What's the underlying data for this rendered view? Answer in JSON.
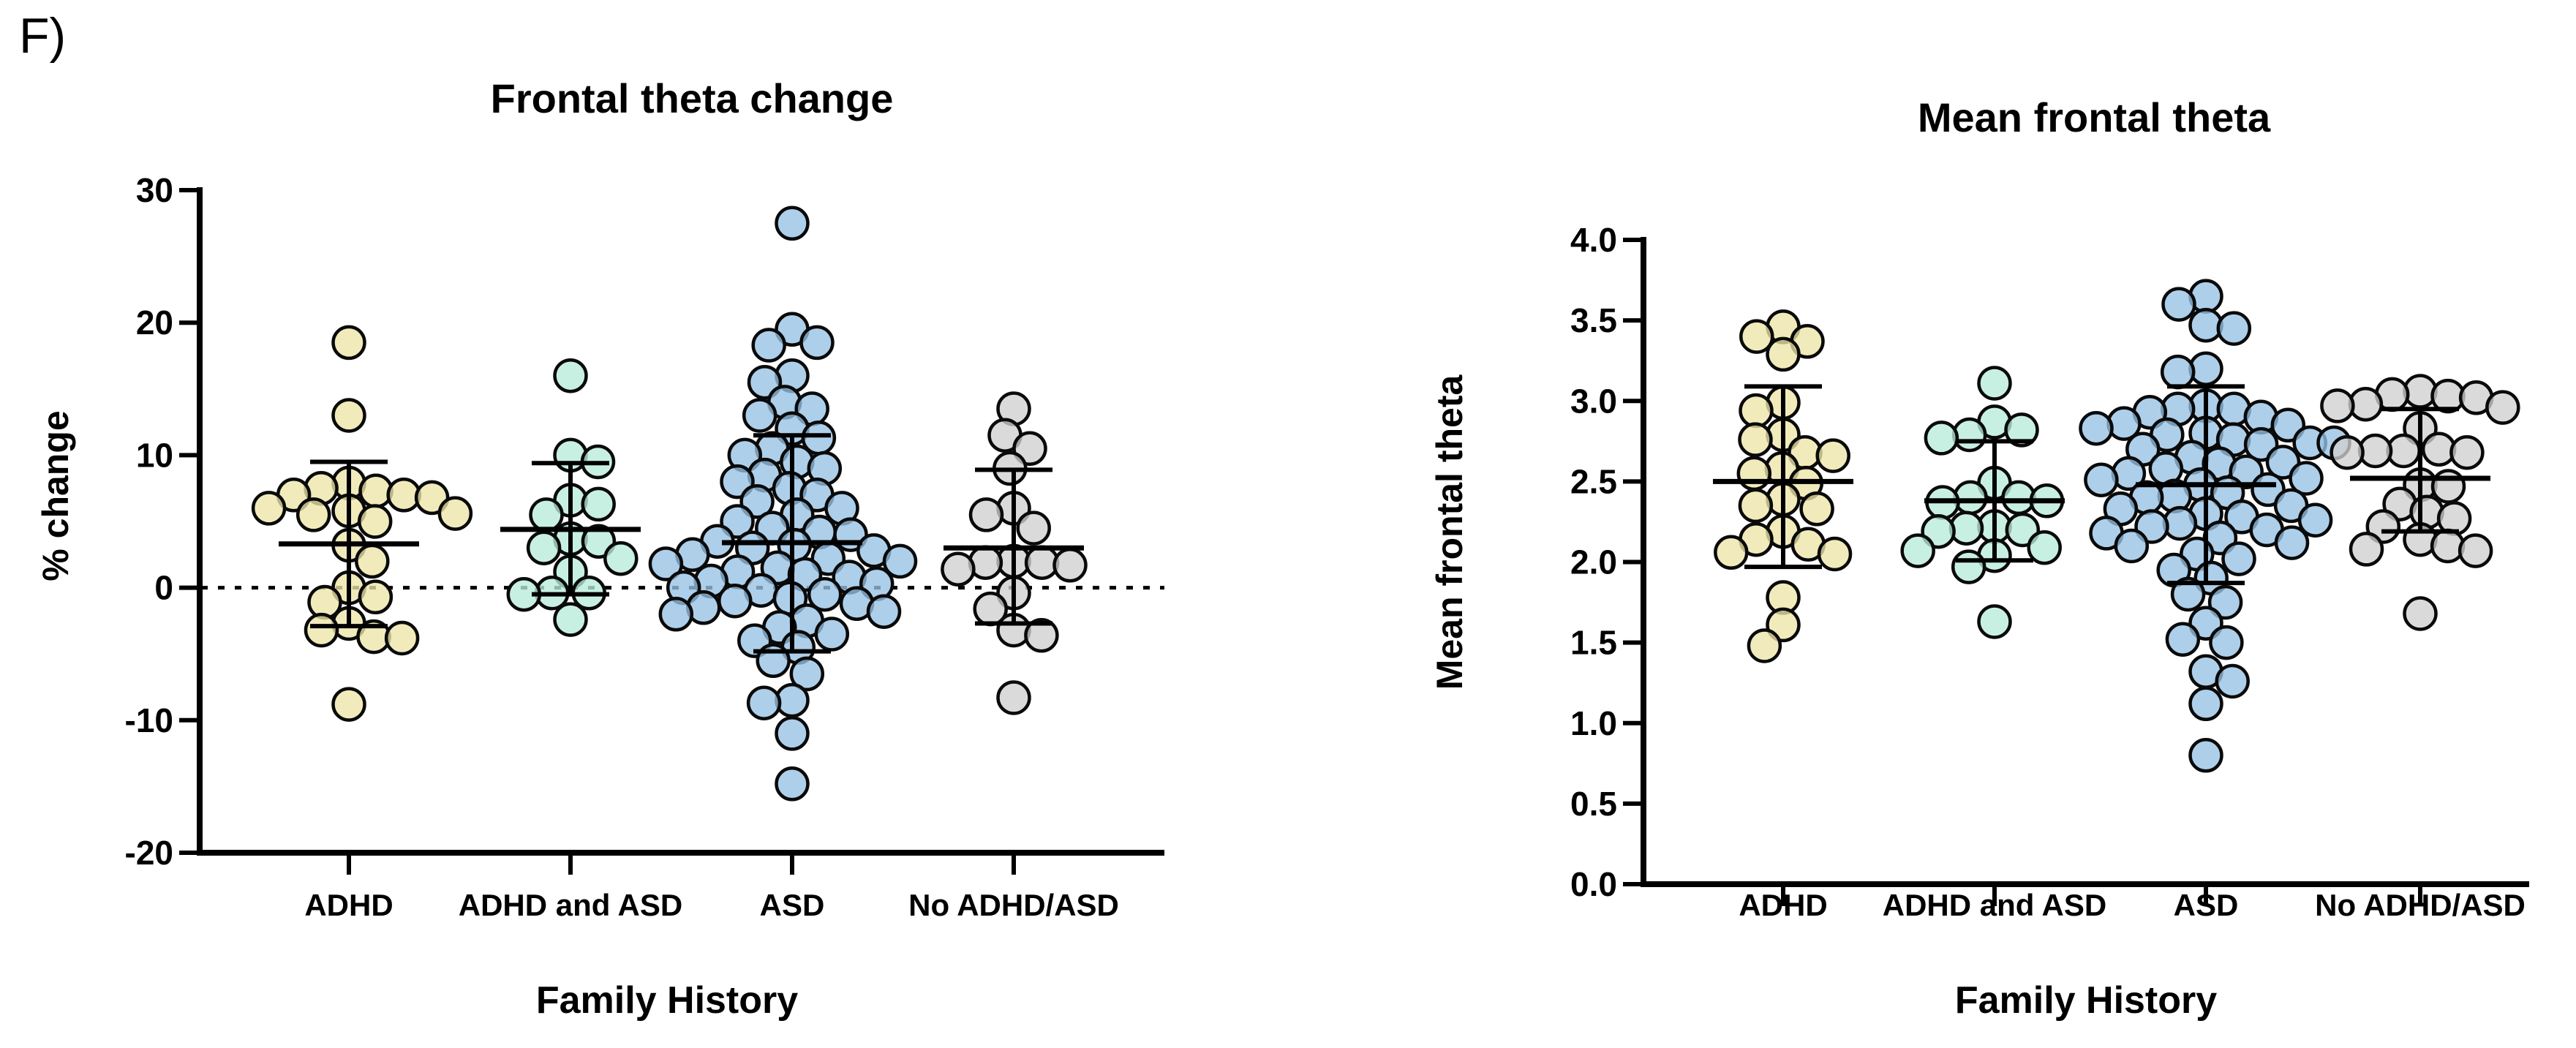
{
  "panel_label": "F)",
  "chart_data": [
    {
      "type": "scatter",
      "title": "Frontal theta change",
      "xlabel": "Family History",
      "ylabel": "% change",
      "ylim": [
        -20,
        30
      ],
      "yticks": [
        30,
        20,
        10,
        0,
        -10,
        -20
      ],
      "ytick_labels": [
        "30",
        "20",
        "10",
        "0",
        "-10",
        "-20"
      ],
      "reference_line_y": 0,
      "grid": false,
      "legend": "none",
      "categories": [
        "ADHD",
        "ADHD and ASD",
        "ASD",
        "No ADHD/ASD"
      ],
      "series": [
        {
          "name": "ADHD",
          "color": "#EDE6A8",
          "mean": 3.3,
          "sd_low": -2.9,
          "sd_high": 9.5,
          "values": [
            18.5,
            13,
            7.9,
            7.5,
            7.3,
            7,
            7,
            6.8,
            6,
            5.8,
            5.6,
            5.5,
            5,
            3.2,
            2,
            0,
            -0.7,
            -1.1,
            -2.7,
            -3.2,
            -3.7,
            -3.8,
            -8.8
          ]
        },
        {
          "name": "ADHD and ASD",
          "color": "#B8ECDA",
          "mean": 4.4,
          "sd_low": -0.5,
          "sd_high": 9.4,
          "values": [
            16,
            10,
            9.5,
            6.6,
            6.3,
            5.5,
            3.7,
            3.5,
            3,
            2.2,
            1.2,
            -0.4,
            -0.4,
            -0.5,
            -2.4
          ]
        },
        {
          "name": "ASD",
          "color": "#97C1E4",
          "mean": 3.4,
          "sd_low": -4.8,
          "sd_high": 11.5,
          "values": [
            27.5,
            19.5,
            18.5,
            18.3,
            16,
            15.5,
            14,
            13.5,
            13,
            12,
            11.3,
            10.5,
            10,
            9.5,
            9,
            8.5,
            8,
            7.5,
            7,
            6.5,
            6,
            5.5,
            5,
            4.5,
            4.2,
            4,
            3.5,
            3.2,
            3,
            2.8,
            2.5,
            2.2,
            2,
            1.8,
            1.5,
            1.2,
            1,
            0.8,
            0.5,
            0.3,
            0,
            -0.2,
            -0.5,
            -0.8,
            -1,
            -1.2,
            -1.5,
            -1.8,
            -2,
            -2.5,
            -3,
            -3.5,
            -4,
            -4.5,
            -5.5,
            -6.5,
            -8.5,
            -8.7,
            -11,
            -14.8
          ]
        },
        {
          "name": "No ADHD/ASD",
          "color": "#D0D0D0",
          "mean": 3.0,
          "sd_low": -2.7,
          "sd_high": 8.9,
          "values": [
            13.5,
            11.5,
            10.5,
            9,
            6,
            5.5,
            4.5,
            2,
            1.9,
            1.9,
            1.7,
            1.4,
            -0.4,
            -1.6,
            -3.2,
            -3.6,
            -8.3
          ]
        }
      ]
    },
    {
      "type": "scatter",
      "title": "Mean frontal theta",
      "xlabel": "Family History",
      "ylabel": "Mean frontal theta",
      "ylim": [
        0,
        4
      ],
      "yticks": [
        4.0,
        3.5,
        3.0,
        2.5,
        2.0,
        1.5,
        1.0,
        0.5,
        0.0
      ],
      "ytick_labels": [
        "4.0",
        "3.5",
        "3.0",
        "2.5",
        "2.0",
        "1.5",
        "1.0",
        "0.5",
        "0.0"
      ],
      "reference_line_y": null,
      "grid": false,
      "legend": "none",
      "categories": [
        "ADHD",
        "ADHD and ASD",
        "ASD",
        "No ADHD/ASD"
      ],
      "series": [
        {
          "name": "ADHD",
          "color": "#EDE6A8",
          "mean": 2.5,
          "sd_low": 1.97,
          "sd_high": 3.09,
          "values": [
            3.46,
            3.4,
            3.37,
            3.29,
            2.99,
            2.94,
            2.79,
            2.76,
            2.68,
            2.66,
            2.58,
            2.55,
            2.49,
            2.39,
            2.35,
            2.33,
            2.19,
            2.14,
            2.11,
            2.06,
            2.05,
            1.78,
            1.61,
            1.48
          ]
        },
        {
          "name": "ADHD and ASD",
          "color": "#B8ECDA",
          "mean": 2.38,
          "sd_low": 2.01,
          "sd_high": 2.75,
          "values": [
            3.11,
            2.87,
            2.82,
            2.79,
            2.77,
            2.49,
            2.4,
            2.4,
            2.38,
            2.37,
            2.22,
            2.21,
            2.2,
            2.19,
            2.09,
            2.07,
            2.04,
            1.97,
            1.63
          ]
        },
        {
          "name": "ASD",
          "color": "#97C1E4",
          "mean": 2.48,
          "sd_low": 1.87,
          "sd_high": 3.09,
          "values": [
            3.65,
            3.6,
            3.47,
            3.45,
            3.2,
            3.18,
            2.97,
            2.95,
            2.95,
            2.93,
            2.9,
            2.86,
            2.85,
            2.83,
            2.8,
            2.79,
            2.76,
            2.74,
            2.74,
            2.73,
            2.7,
            2.65,
            2.62,
            2.61,
            2.58,
            2.56,
            2.55,
            2.52,
            2.51,
            2.48,
            2.45,
            2.43,
            2.41,
            2.4,
            2.35,
            2.33,
            2.3,
            2.28,
            2.26,
            2.24,
            2.22,
            2.2,
            2.18,
            2.15,
            2.12,
            2.1,
            2.05,
            2.02,
            1.95,
            1.9,
            1.8,
            1.75,
            1.62,
            1.52,
            1.5,
            1.32,
            1.26,
            1.12,
            0.8
          ]
        },
        {
          "name": "No ADHD/ASD",
          "color": "#D0D0D0",
          "mean": 2.52,
          "sd_low": 2.19,
          "sd_high": 2.95,
          "values": [
            3.06,
            3.04,
            3.03,
            3.02,
            2.98,
            2.97,
            2.96,
            2.83,
            2.7,
            2.69,
            2.69,
            2.68,
            2.68,
            2.48,
            2.47,
            2.36,
            2.31,
            2.27,
            2.22,
            2.14,
            2.1,
            2.08,
            2.07,
            1.68
          ]
        }
      ]
    }
  ]
}
